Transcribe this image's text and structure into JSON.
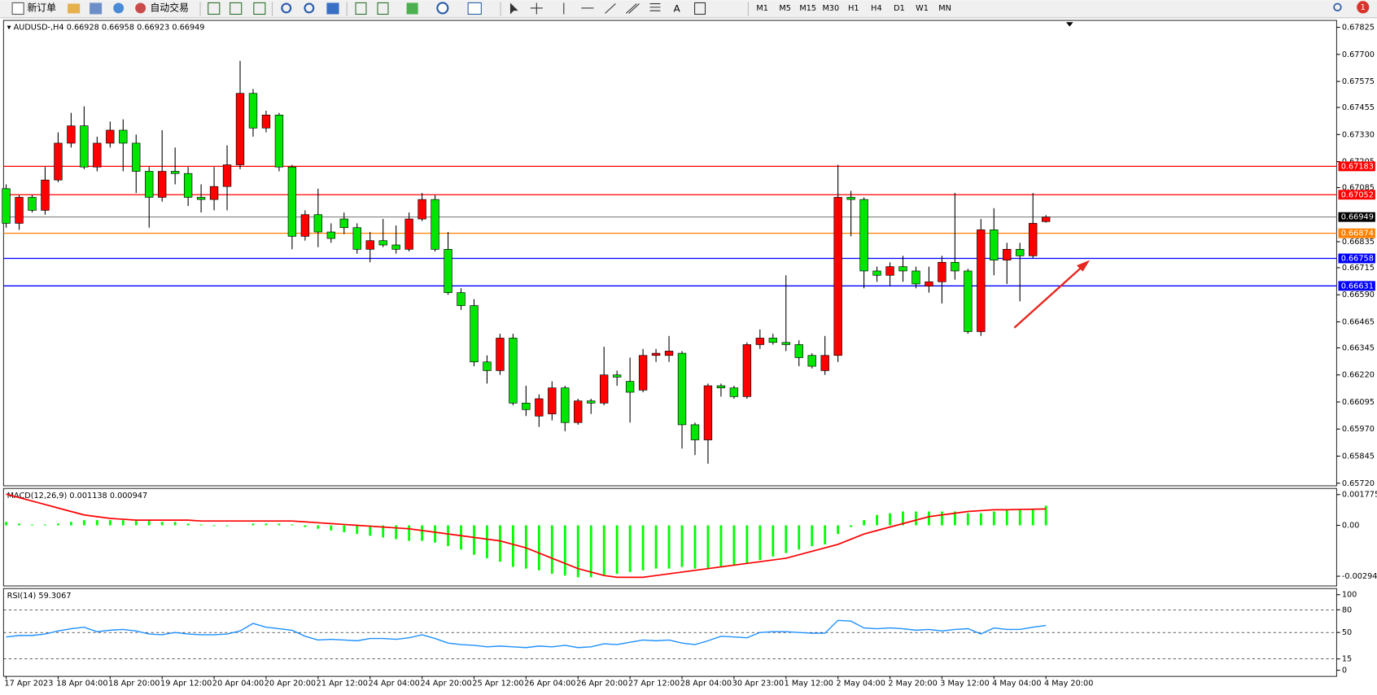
{
  "toolbar": {
    "new_order": "新订单",
    "auto_trading": "自动交易",
    "text_tool": "A",
    "timeframes": [
      "M1",
      "M5",
      "M15",
      "M30",
      "H1",
      "H4",
      "D1",
      "W1",
      "MN"
    ],
    "notifications": 1
  },
  "chart_data": {
    "type": "candlestick",
    "symbol": "AUDUSD-,H4",
    "up_color": "#ff0000",
    "down_color": "#00e600",
    "wick_color": "#000000",
    "ylim": [
      0.65708,
      0.67857
    ],
    "yticks": [
      0.67825,
      {
        "value": 0.677,
        "label": "0.67700"
      },
      0.67575,
      0.67455,
      {
        "value": 0.6733,
        "label": "0.67330"
      },
      0.67205,
      0.67085,
      0.66835,
      0.66715,
      {
        "value": 0.6659,
        "label": "0.66590"
      },
      0.66465,
      0.66345,
      {
        "value": 0.6622,
        "label": "0.66220"
      },
      0.66095,
      {
        "value": 0.6597,
        "label": "0.65970"
      },
      0.65845,
      {
        "value": 0.6572,
        "label": "0.65720"
      }
    ],
    "levels": [
      {
        "value": 0.67183,
        "color": "#ff0000"
      },
      {
        "value": 0.67052,
        "color": "#ff0000"
      },
      {
        "value": 0.66874,
        "color": "#ff8000"
      },
      {
        "value": 0.66758,
        "color": "#0000ff"
      },
      {
        "value": 0.66631,
        "color": "#0000ff"
      }
    ],
    "categories": [
      "17 Apr 2023",
      null,
      null,
      null,
      "18 Apr 04:00",
      null,
      null,
      null,
      "18 Apr 20:00",
      null,
      null,
      null,
      "19 Apr 12:00",
      null,
      null,
      null,
      "20 Apr 04:00",
      null,
      null,
      null,
      "20 Apr 20:00",
      null,
      null,
      null,
      "21 Apr 12:00",
      null,
      null,
      null,
      "24 Apr 04:00",
      null,
      null,
      null,
      "24 Apr 20:00",
      null,
      null,
      null,
      "25 Apr 12:00",
      null,
      null,
      null,
      "26 Apr 04:00",
      null,
      null,
      null,
      "26 Apr 20:00",
      null,
      null,
      null,
      "27 Apr 12:00",
      null,
      null,
      null,
      "28 Apr 04:00",
      null,
      null,
      null,
      "30 Apr 23:00",
      null,
      null,
      null,
      "1 May 12:00",
      null,
      null,
      null,
      "2 May 04:00",
      null,
      null,
      null,
      "2 May 20:00",
      null,
      null,
      null,
      "3 May 12:00",
      null,
      null,
      null,
      "4 May 04:00",
      null,
      null,
      null,
      "4 May 20:00"
    ],
    "candles": [
      [
        0.6708,
        0.671,
        0.669,
        0.6692
      ],
      [
        0.6692,
        0.6705,
        0.6689,
        0.6704
      ],
      [
        0.6704,
        0.6705,
        0.6697,
        0.6698
      ],
      [
        0.6698,
        0.6718,
        0.6696,
        0.6712
      ],
      [
        0.6712,
        0.6734,
        0.6711,
        0.6729
      ],
      [
        0.6729,
        0.6743,
        0.6727,
        0.6737
      ],
      [
        0.6737,
        0.6746,
        0.6717,
        0.6718
      ],
      [
        0.6718,
        0.6732,
        0.6716,
        0.6729
      ],
      [
        0.6729,
        0.6739,
        0.6727,
        0.6735
      ],
      [
        0.6735,
        0.674,
        0.6716,
        0.6729
      ],
      [
        0.6729,
        0.6733,
        0.6706,
        0.6716
      ],
      [
        0.6716,
        0.6718,
        0.669,
        0.6704
      ],
      [
        0.6704,
        0.6735,
        0.6702,
        0.6716
      ],
      [
        0.6716,
        0.6727,
        0.671,
        0.6715
      ],
      [
        0.6715,
        0.6718,
        0.67,
        0.6704
      ],
      [
        0.6704,
        0.671,
        0.6697,
        0.6703
      ],
      [
        0.6703,
        0.6718,
        0.6698,
        0.6709
      ],
      [
        0.6709,
        0.6728,
        0.6698,
        0.6719
      ],
      [
        0.6719,
        0.6767,
        0.6717,
        0.6752
      ],
      [
        0.6752,
        0.6754,
        0.6732,
        0.6736
      ],
      [
        0.6736,
        0.6744,
        0.6734,
        0.6742
      ],
      [
        0.6742,
        0.6743,
        0.6716,
        0.6718
      ],
      [
        0.6718,
        0.6719,
        0.668,
        0.6686
      ],
      [
        0.6686,
        0.6698,
        0.6684,
        0.6696
      ],
      [
        0.6696,
        0.6708,
        0.6681,
        0.6688
      ],
      [
        0.6688,
        0.6692,
        0.6683,
        0.6685
      ],
      [
        0.6694,
        0.6697,
        0.6687,
        0.669
      ],
      [
        0.669,
        0.6692,
        0.6678,
        0.668
      ],
      [
        0.668,
        0.6688,
        0.6674,
        0.6684
      ],
      [
        0.6684,
        0.6694,
        0.6681,
        0.6682
      ],
      [
        0.6682,
        0.6691,
        0.6678,
        0.668
      ],
      [
        0.668,
        0.6697,
        0.6679,
        0.6694
      ],
      [
        0.6694,
        0.6706,
        0.6693,
        0.6703
      ],
      [
        0.6703,
        0.6705,
        0.6679,
        0.668
      ],
      [
        0.668,
        0.6688,
        0.6659,
        0.666
      ],
      [
        0.666,
        0.6662,
        0.6652,
        0.6654
      ],
      [
        0.6654,
        0.6657,
        0.6626,
        0.6628
      ],
      [
        0.6628,
        0.6631,
        0.6618,
        0.6624
      ],
      [
        0.6624,
        0.6641,
        0.6622,
        0.6639
      ],
      [
        0.6639,
        0.6641,
        0.6608,
        0.6609
      ],
      [
        0.6609,
        0.6617,
        0.6603,
        0.6606
      ],
      [
        0.6603,
        0.6613,
        0.6598,
        0.6611
      ],
      [
        0.6604,
        0.6619,
        0.6601,
        0.6616
      ],
      [
        0.6616,
        0.6617,
        0.6596,
        0.66
      ],
      [
        0.66,
        0.6611,
        0.6599,
        0.661
      ],
      [
        0.661,
        0.6611,
        0.6604,
        0.6609
      ],
      [
        0.6609,
        0.6635,
        0.6608,
        0.6622
      ],
      [
        0.6622,
        0.6624,
        0.6617,
        0.6621
      ],
      [
        0.6619,
        0.663,
        0.66,
        0.6614
      ],
      [
        0.6615,
        0.6634,
        0.6614,
        0.6631
      ],
      [
        0.6631,
        0.6634,
        0.6628,
        0.6632
      ],
      [
        0.6631,
        0.664,
        0.6628,
        0.6633
      ],
      [
        0.6632,
        0.6633,
        0.6588,
        0.6599
      ],
      [
        0.6599,
        0.66,
        0.6585,
        0.6592
      ],
      [
        0.6592,
        0.6618,
        0.6581,
        0.6617
      ],
      [
        0.6617,
        0.6618,
        0.6612,
        0.6616
      ],
      [
        0.6616,
        0.6617,
        0.6611,
        0.6612
      ],
      [
        0.6612,
        0.6637,
        0.6611,
        0.6636
      ],
      [
        0.6636,
        0.6643,
        0.6634,
        0.6639
      ],
      [
        0.6639,
        0.6641,
        0.6636,
        0.6637
      ],
      [
        0.6637,
        0.6668,
        0.6633,
        0.6636
      ],
      [
        0.6636,
        0.6638,
        0.6626,
        0.663
      ],
      [
        0.6631,
        0.6632,
        0.6625,
        0.6626
      ],
      [
        0.6624,
        0.664,
        0.6622,
        0.6631
      ],
      [
        0.6631,
        0.6719,
        0.6628,
        0.6704
      ],
      [
        0.6704,
        0.6707,
        0.6686,
        0.6703
      ],
      [
        0.6703,
        0.6704,
        0.6662,
        0.667
      ],
      [
        0.667,
        0.6672,
        0.6665,
        0.6668
      ],
      [
        0.6668,
        0.6674,
        0.6663,
        0.6672
      ],
      [
        0.6672,
        0.6677,
        0.6665,
        0.667
      ],
      [
        0.667,
        0.6672,
        0.6662,
        0.6664
      ],
      [
        0.6663,
        0.6672,
        0.666,
        0.6665
      ],
      [
        0.6665,
        0.6677,
        0.6655,
        0.6674
      ],
      [
        0.6674,
        0.6706,
        0.6666,
        0.667
      ],
      [
        0.667,
        0.6671,
        0.6641,
        0.6642
      ],
      [
        0.6642,
        0.6694,
        0.664,
        0.6689
      ],
      [
        0.6689,
        0.6699,
        0.6668,
        0.6675
      ],
      [
        0.6675,
        0.6683,
        0.6664,
        0.668
      ],
      [
        0.668,
        0.6683,
        0.6656,
        0.6677
      ],
      [
        0.6677,
        0.6706,
        0.6676,
        0.6692
      ],
      [
        0.66928,
        0.66958,
        0.66923,
        0.66949
      ]
    ],
    "macd": {
      "label": "MACD(12,26,9)",
      "ylim": [
        -0.0035,
        0.00213
      ],
      "yticks": [
        0.001775,
        {
          "value": 0,
          "label": "0.00"
        },
        -0.00294
      ],
      "histogram_color": "#00ff00",
      "signal_color": "#ff0000",
      "histogram": [
        0.0002,
        0.0001,
        5e-05,
        5e-05,
        0.0001,
        0.0002,
        0.0003,
        0.0003,
        0.0003,
        0.0003,
        0.0003,
        0.0003,
        0.0002,
        0.0002,
        0.0001,
        5e-05,
        -5e-05,
        -5e-05,
        0,
        0.0001,
        0.0001,
        0.0001,
        5e-05,
        -0.0001,
        -0.0002,
        -0.0003,
        -0.0004,
        -0.0005,
        -0.0006,
        -0.0007,
        -0.0008,
        -0.0009,
        -0.0009,
        -0.001,
        -0.0012,
        -0.0014,
        -0.0017,
        -0.0019,
        -0.0021,
        -0.0024,
        -0.0025,
        -0.0026,
        -0.0028,
        -0.0029,
        -0.003,
        -0.003,
        -0.0029,
        -0.0028,
        -0.0027,
        -0.0026,
        -0.0025,
        -0.0025,
        -0.0024,
        -0.0025,
        -0.0025,
        -0.0024,
        -0.0023,
        -0.0022,
        -0.002,
        -0.0018,
        -0.0016,
        -0.0014,
        -0.0012,
        -0.0011,
        -0.0005,
        -0.0001,
        0.0003,
        0.0006,
        0.0007,
        0.0008,
        0.0008,
        0.0008,
        0.0008,
        0.0008,
        0.0007,
        0.0007,
        0.0008,
        0.0009,
        0.0009,
        0.0009,
        0.001138
      ],
      "signal": [
        0.0018,
        0.0016,
        0.0014,
        0.0012,
        0.001,
        0.0008,
        0.0006,
        0.0005,
        0.0004,
        0.00035,
        0.0003,
        0.0003,
        0.0003,
        0.0003,
        0.0003,
        0.00025,
        0.00025,
        0.00025,
        0.00025,
        0.00025,
        0.00025,
        0.00025,
        0.00025,
        0.0002,
        0.00015,
        0.0001,
        5e-05,
        0,
        -5e-05,
        -0.0001,
        -0.00015,
        -0.0002,
        -0.0003,
        -0.0004,
        -0.0005,
        -0.0006,
        -0.0007,
        -0.0008,
        -0.0009,
        -0.0011,
        -0.0013,
        -0.0016,
        -0.0019,
        -0.0022,
        -0.0025,
        -0.0027,
        -0.0029,
        -0.003,
        -0.003,
        -0.003,
        -0.0029,
        -0.0028,
        -0.0027,
        -0.0026,
        -0.0025,
        -0.0024,
        -0.0023,
        -0.0022,
        -0.0021,
        -0.002,
        -0.0019,
        -0.0017,
        -0.0015,
        -0.0013,
        -0.0011,
        -0.0008,
        -0.0005,
        -0.0003,
        -0.0001,
        0.0001,
        0.0003,
        0.0005,
        0.0006,
        0.0007,
        0.0008,
        0.00085,
        0.0009,
        0.0009,
        0.00092,
        0.00093,
        0.000947
      ]
    },
    "rsi": {
      "label": "RSI(14)",
      "ylim": [
        -8.1,
        108.1
      ],
      "yticks": [
        100,
        80,
        50,
        15,
        0
      ],
      "levels": [
        80,
        50,
        15
      ],
      "color": "#1e90ff",
      "values": [
        44,
        46,
        46,
        48,
        52,
        55,
        57,
        51,
        53,
        54,
        52,
        48,
        47,
        50,
        48,
        47,
        47,
        48,
        52,
        62,
        57,
        55,
        53,
        45,
        40,
        41,
        40,
        39,
        42,
        42,
        41,
        43,
        47,
        42,
        36,
        34,
        33,
        31,
        32,
        31,
        30,
        32,
        31,
        33,
        30,
        31,
        35,
        34,
        37,
        40,
        39,
        40,
        36,
        34,
        39,
        45,
        44,
        43,
        50,
        51,
        51,
        50,
        49,
        49,
        66,
        65,
        56,
        55,
        56,
        55,
        53,
        54,
        52,
        54,
        55,
        48,
        56,
        54,
        54,
        57,
        59.3067
      ]
    }
  }
}
